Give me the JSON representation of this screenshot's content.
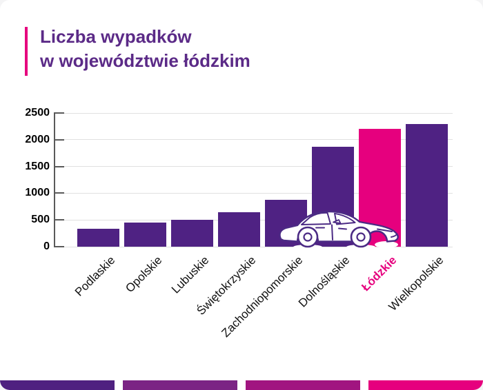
{
  "title": {
    "line1": "Liczba wypadków",
    "line2": "w województwie łódzkim"
  },
  "colors": {
    "title_text": "#5b2a87",
    "accent_bar": "#e6007e",
    "bar_default": "#4f2283",
    "bar_highlight": "#e6007e",
    "axis": "#595959",
    "gridline": "#e0e0e0",
    "car_outline": "#4b2a84"
  },
  "chart_data": {
    "type": "bar",
    "categories": [
      "Podlaskie",
      "Opolskie",
      "Lubuskie",
      "Świętokrzyskie",
      "Zachodniopomorskie",
      "Dolnośląskie",
      "Łódzkie",
      "Wielkopolskie"
    ],
    "values": [
      340,
      450,
      500,
      650,
      880,
      1870,
      2200,
      2300
    ],
    "highlight_category": "Łódzkie",
    "title": "Liczba wypadków w województwie łódzkim",
    "xlabel": "",
    "ylabel": "",
    "ylim": [
      0,
      2500
    ],
    "yticks": [
      0,
      500,
      1000,
      1500,
      2000,
      2500
    ],
    "grid": "horizontal",
    "x_tick_rotation": 45,
    "legend": "none"
  },
  "decorations": {
    "car_icon": "car-outline-icon",
    "footer_segments": [
      "#4f2180",
      "#7b2484",
      "#a11580",
      "#e6007e"
    ]
  }
}
